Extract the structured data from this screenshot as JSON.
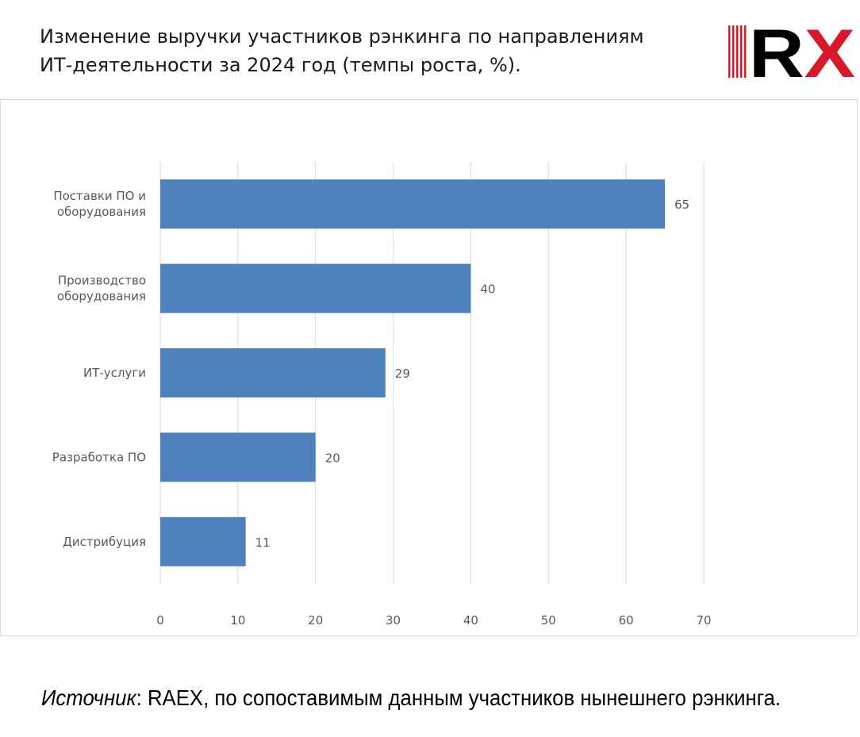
{
  "header": {
    "title_line1": "Изменение выручки участников рэнкинга по направлениям",
    "title_line2": "ИТ-деятельности за 2024 год (темпы роста, %).",
    "logo_text": "RX",
    "logo_colors": {
      "primary": "#d7192b",
      "secondary": "#000000"
    }
  },
  "chart_data": {
    "type": "bar",
    "orientation": "horizontal",
    "categories": [
      [
        "Поставки ПО и",
        "оборудования"
      ],
      [
        "Производство",
        "оборудования"
      ],
      [
        "ИТ-услуги"
      ],
      [
        "Разработка ПО"
      ],
      [
        "Дистрибуция"
      ]
    ],
    "values": [
      65,
      40,
      29,
      20,
      11
    ],
    "data_labels": [
      "65",
      "40",
      "29",
      "20",
      "11"
    ],
    "xlim": [
      0,
      70
    ],
    "xticks": [
      0,
      10,
      20,
      30,
      40,
      50,
      60,
      70
    ],
    "xtick_labels": [
      "0",
      "10",
      "20",
      "30",
      "40",
      "50",
      "60",
      "70"
    ],
    "grid": "vertical",
    "legend": "none",
    "bar_color": "#4e81bd",
    "grid_color": "#d9d9d9",
    "label_color": "#595959"
  },
  "footer": {
    "source_label": "Источник",
    "source_text": ": RAEX, по сопоставимым данным участников нынешнего рэнкинга."
  }
}
